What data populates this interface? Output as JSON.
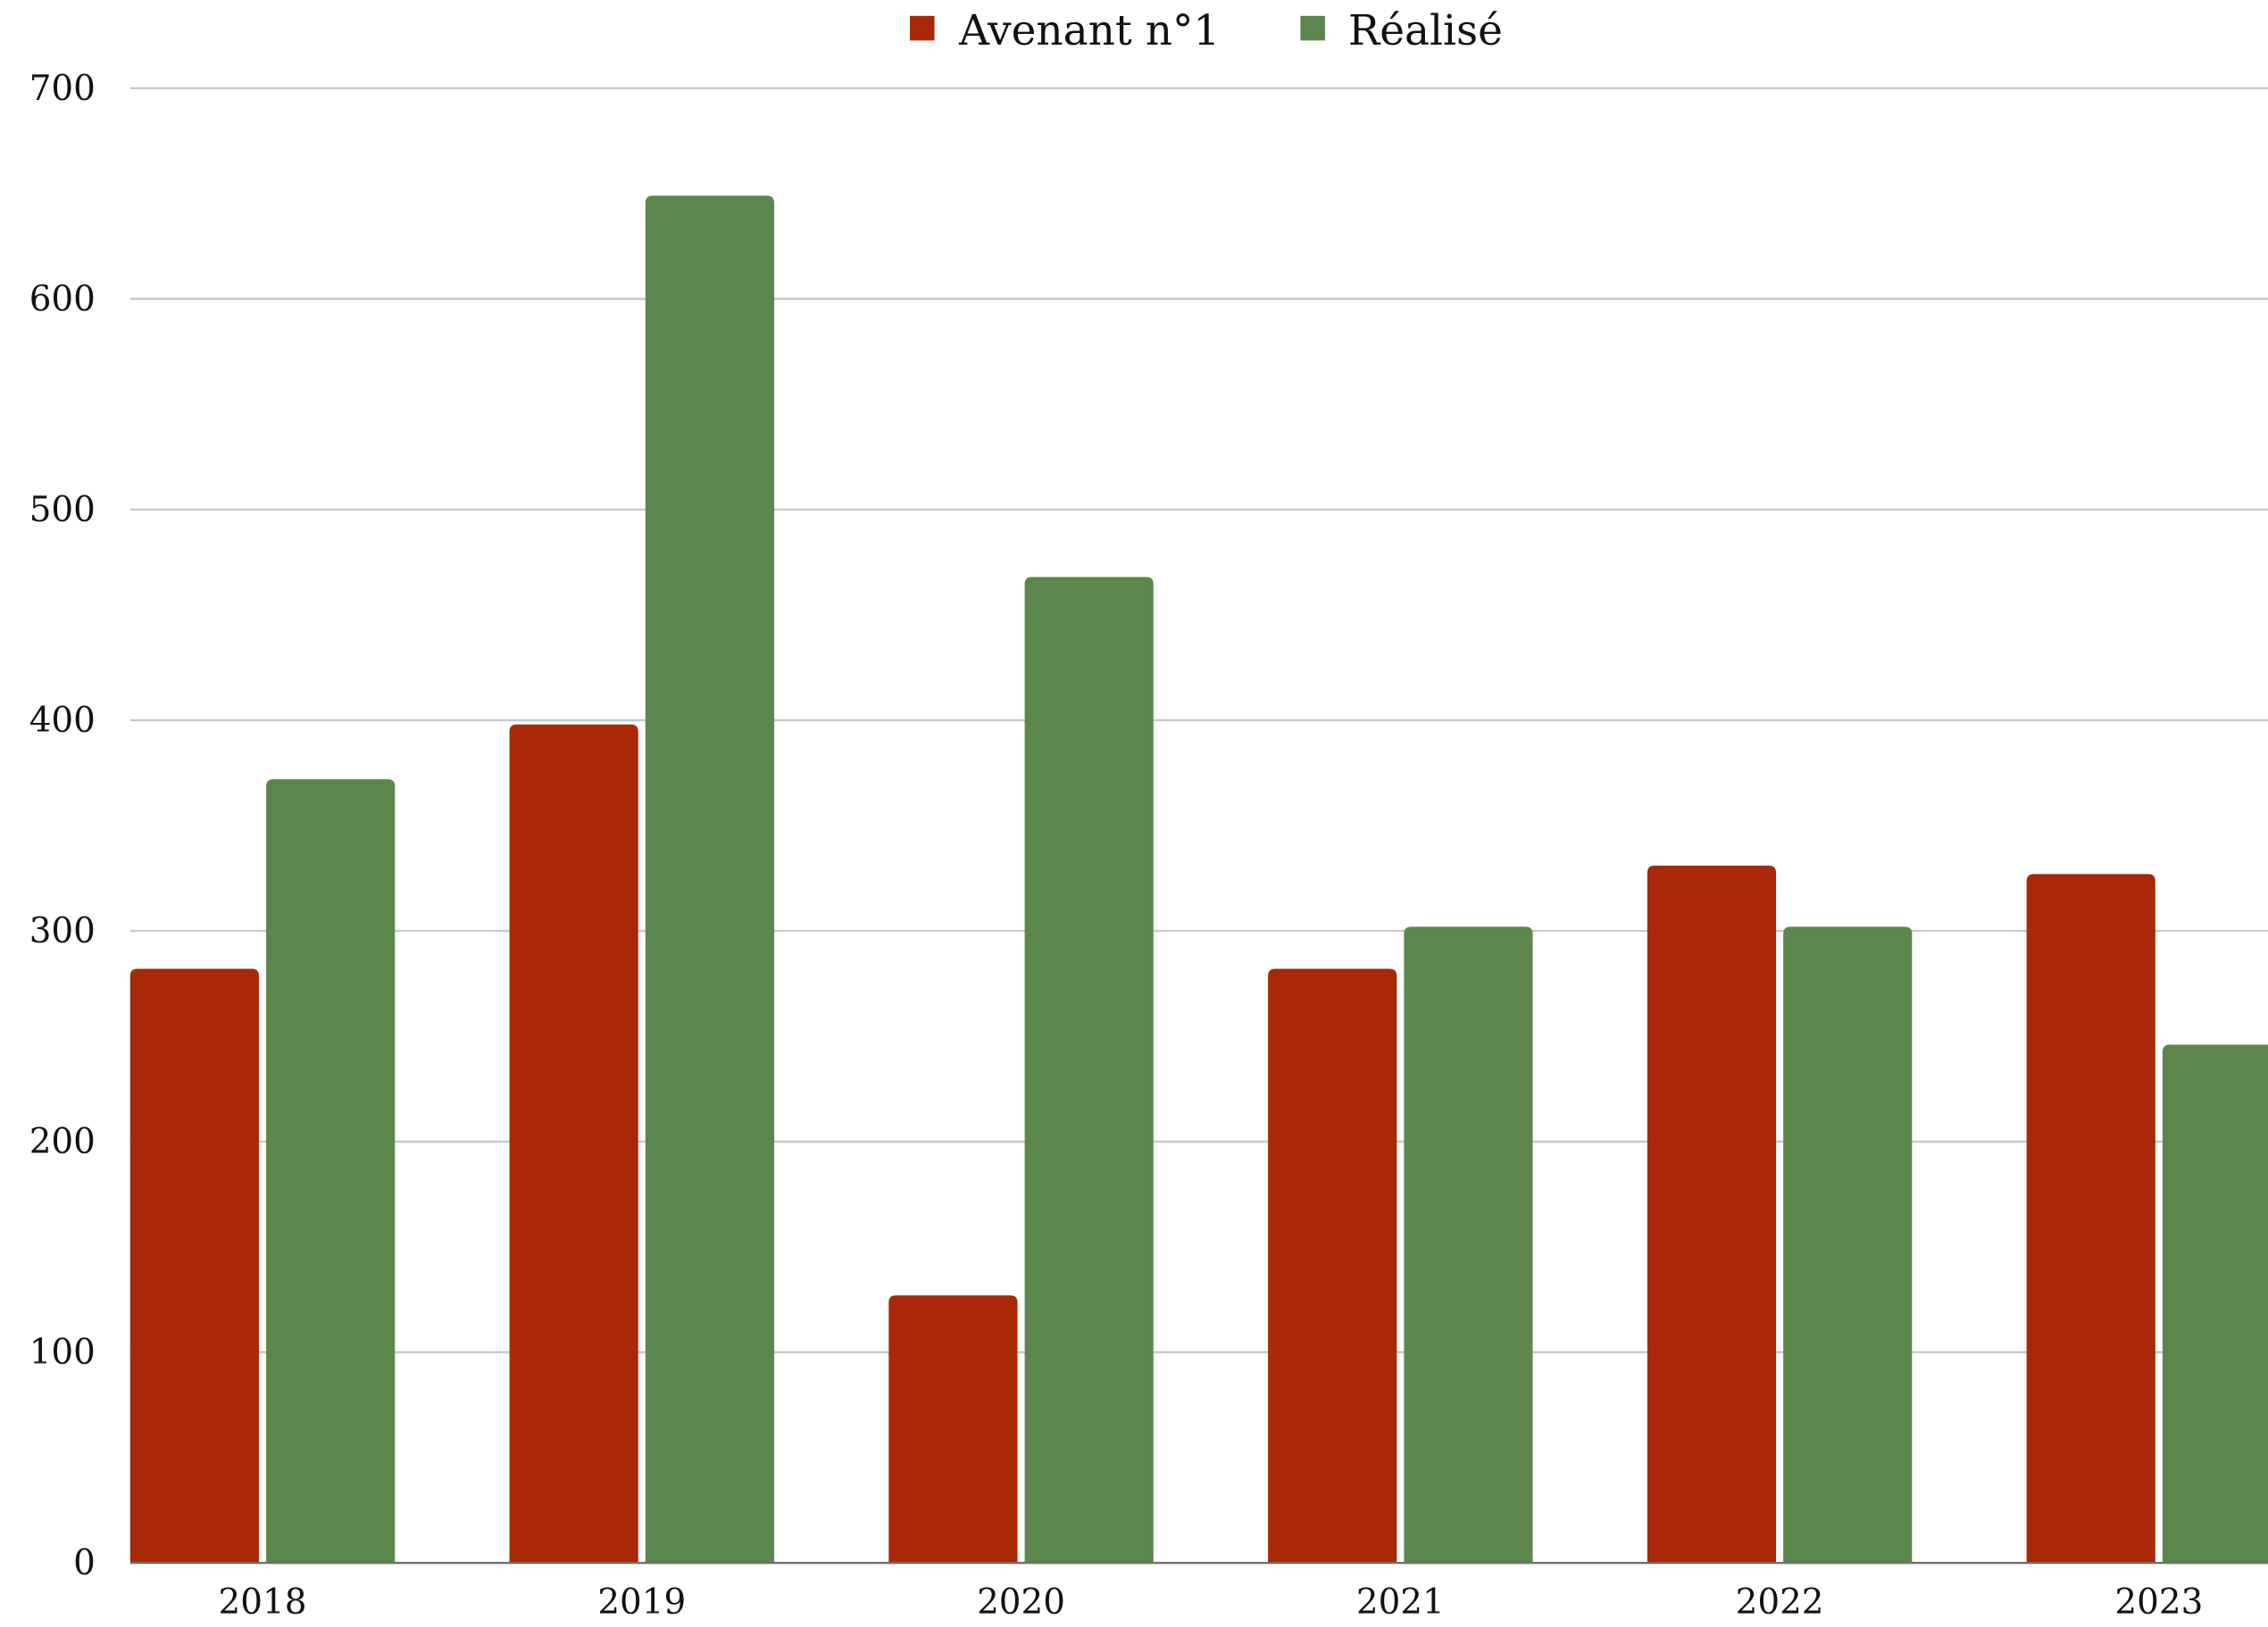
{
  "chart_data": {
    "type": "bar",
    "categories": [
      "2018",
      "2019",
      "2020",
      "2021",
      "2022",
      "2023"
    ],
    "series": [
      {
        "name": "Avenant n°1",
        "color": "#a82807",
        "values": [
          282,
          398,
          127,
          282,
          331,
          327
        ]
      },
      {
        "name": "Réalisé",
        "color": "#5b864c",
        "values": [
          372,
          649,
          468,
          302,
          302,
          246
        ]
      }
    ],
    "ylim": [
      0,
      700
    ],
    "yticks": [
      "0",
      "100",
      "200",
      "300",
      "400",
      "500",
      "600",
      "700"
    ],
    "grid": true,
    "legend_position": "top-center"
  }
}
